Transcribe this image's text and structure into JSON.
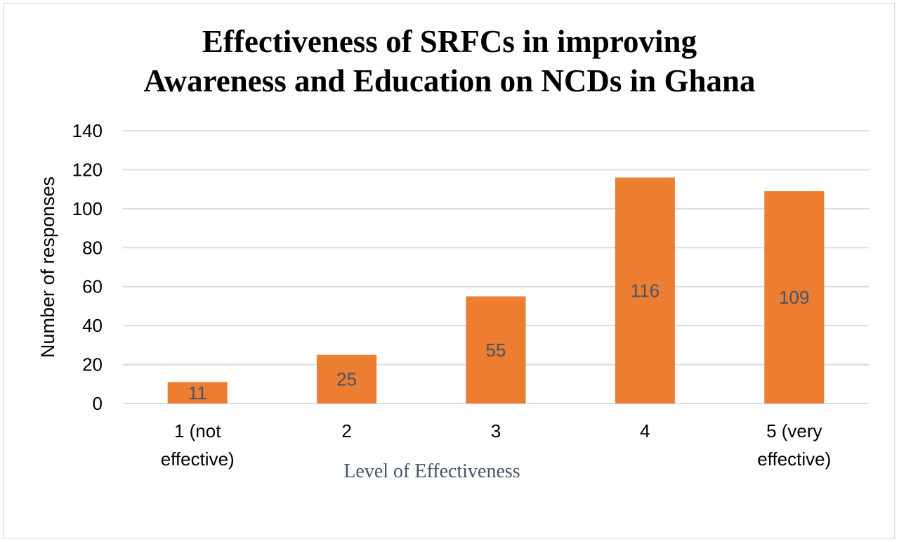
{
  "chart_data": {
    "type": "bar",
    "title_lines": [
      "Effectiveness of SRFCs in improving",
      "Awareness and Education on NCDs in Ghana"
    ],
    "xlabel": "Level of Effectiveness",
    "ylabel": "Number of responses",
    "categories": [
      [
        "1 (not",
        "effective)"
      ],
      [
        "2"
      ],
      [
        "3"
      ],
      [
        "4"
      ],
      [
        "5 (very",
        "effective)"
      ]
    ],
    "values": [
      11,
      25,
      55,
      116,
      109
    ],
    "data_labels": [
      "11",
      "25",
      "55",
      "116",
      "109"
    ],
    "ylim": [
      0,
      140
    ],
    "yticks": [
      "0",
      "20",
      "40",
      "60",
      "80",
      "100",
      "120",
      "140"
    ],
    "grid": true,
    "bar_color": "#ed7d31",
    "grid_color": "#d9dde3",
    "label_color": "#44546a"
  }
}
